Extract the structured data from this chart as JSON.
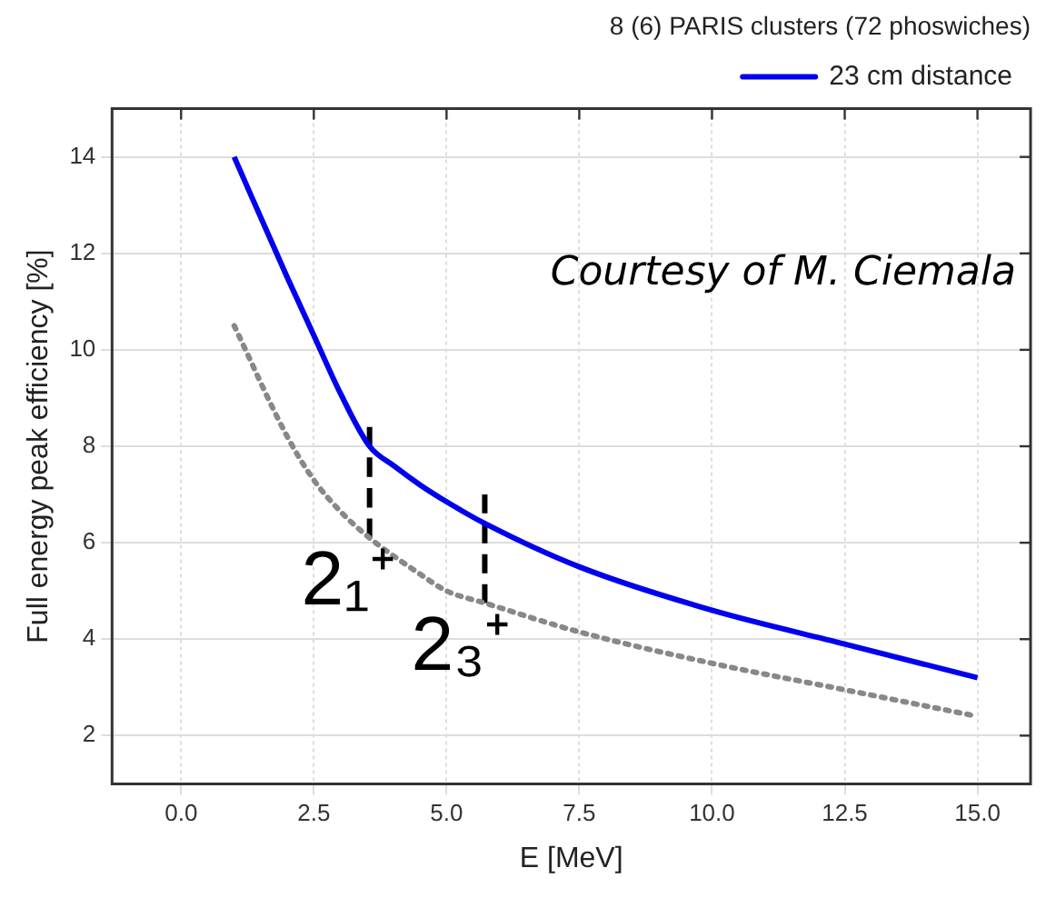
{
  "chart_data": {
    "type": "line",
    "xlabel": "E [MeV]",
    "ylabel": "Full energy peak efficiency [%]",
    "legend_title": "8 (6) PARIS clusters (72 phoswiches)",
    "legend": "top right",
    "grid": true,
    "marker": "none",
    "xlim": [
      -1.3,
      16
    ],
    "ylim": [
      1,
      15
    ],
    "xticks": [
      {
        "value": 0,
        "label": "0.0"
      },
      {
        "value": 2.5,
        "label": "2.5"
      },
      {
        "value": 5,
        "label": "5.0"
      },
      {
        "value": 7.5,
        "label": "7.5"
      },
      {
        "value": 10,
        "label": "10.0"
      },
      {
        "value": 12.5,
        "label": "12.5"
      },
      {
        "value": 15,
        "label": "15.0"
      }
    ],
    "yticks": [
      2,
      4,
      6,
      8,
      10,
      12,
      14
    ],
    "series": [
      {
        "name": "23 cm distance",
        "color": "#0000ee",
        "line_style": "solid",
        "x": [
          1,
          2,
          2.5,
          3,
          3.55,
          4,
          4.5,
          5,
          5.72,
          7.5,
          10,
          12.5,
          15
        ],
        "values": [
          14.0,
          11.5,
          10.3,
          9.1,
          8.0,
          7.6,
          7.2,
          6.85,
          6.4,
          5.5,
          4.6,
          3.9,
          3.2
        ]
      },
      {
        "color": "#888888",
        "line_style": "dotted",
        "x": [
          1,
          2,
          2.5,
          3,
          3.55,
          4.5,
          5,
          5.72,
          7.5,
          10,
          12.5,
          15
        ],
        "values": [
          10.5,
          8.2,
          7.3,
          6.65,
          6.1,
          5.35,
          5.0,
          4.75,
          4.15,
          3.5,
          2.95,
          2.4
        ]
      },
      {
        "color": "#000000",
        "line_style": "dashed",
        "x": [
          3.55,
          3.55
        ],
        "values": [
          6.1,
          8.4
        ]
      },
      {
        "color": "#000000",
        "line_style": "dashed",
        "x": [
          5.72,
          5.72
        ],
        "values": [
          4.75,
          7.0
        ]
      }
    ],
    "annotations": [
      {
        "text": "2₁⁺",
        "x": 3.55,
        "y": 6.1
      },
      {
        "text": "2₃⁺",
        "x": 5.72,
        "y": 4.75
      },
      "Courtesy of M. Ciemala"
    ]
  }
}
